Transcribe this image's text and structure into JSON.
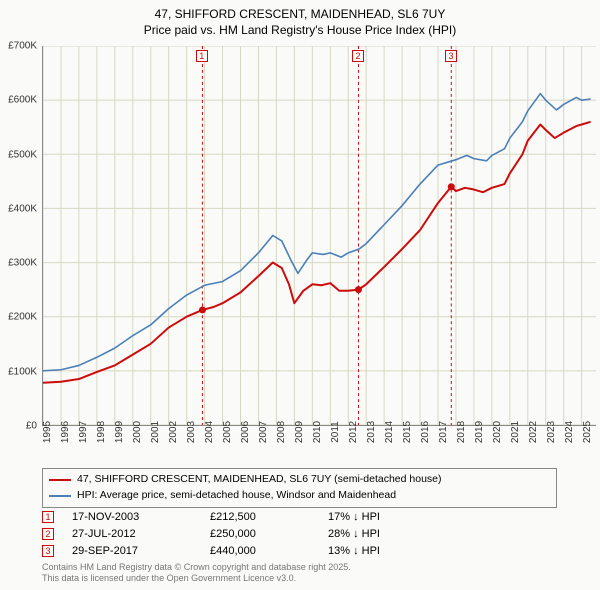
{
  "title": {
    "line1": "47, SHIFFORD CRESCENT, MAIDENHEAD, SL6 7UY",
    "line2": "Price paid vs. HM Land Registry's House Price Index (HPI)"
  },
  "chart": {
    "type": "line",
    "background_color": "#fafaf8",
    "grid_color": "#d7d7c5",
    "border_color": "#888888",
    "x_domain": [
      1995,
      2025.8
    ],
    "y_domain": [
      0,
      700000
    ],
    "y_ticks": [
      {
        "v": 0,
        "label": "£0"
      },
      {
        "v": 100000,
        "label": "£100K"
      },
      {
        "v": 200000,
        "label": "£200K"
      },
      {
        "v": 300000,
        "label": "£300K"
      },
      {
        "v": 400000,
        "label": "£400K"
      },
      {
        "v": 500000,
        "label": "£500K"
      },
      {
        "v": 600000,
        "label": "£600K"
      },
      {
        "v": 700000,
        "label": "£700K"
      }
    ],
    "x_ticks": [
      1995,
      1996,
      1997,
      1998,
      1999,
      2000,
      2001,
      2002,
      2003,
      2004,
      2005,
      2006,
      2007,
      2008,
      2009,
      2010,
      2011,
      2012,
      2013,
      2014,
      2015,
      2016,
      2017,
      2018,
      2019,
      2020,
      2021,
      2022,
      2023,
      2024,
      2025
    ],
    "series": [
      {
        "name": "price_paid",
        "color": "#cc0b0b",
        "width": 2,
        "points": [
          [
            1995,
            78000
          ],
          [
            1996,
            80000
          ],
          [
            1997,
            85000
          ],
          [
            1998,
            98000
          ],
          [
            1999,
            110000
          ],
          [
            2000,
            130000
          ],
          [
            2001,
            150000
          ],
          [
            2002,
            180000
          ],
          [
            2003,
            200000
          ],
          [
            2003.88,
            212500
          ],
          [
            2004.5,
            218000
          ],
          [
            2005,
            225000
          ],
          [
            2006,
            245000
          ],
          [
            2007,
            275000
          ],
          [
            2007.8,
            300000
          ],
          [
            2008.3,
            290000
          ],
          [
            2008.7,
            260000
          ],
          [
            2009,
            225000
          ],
          [
            2009.5,
            248000
          ],
          [
            2010,
            260000
          ],
          [
            2010.5,
            258000
          ],
          [
            2011,
            262000
          ],
          [
            2011.5,
            248000
          ],
          [
            2012,
            248000
          ],
          [
            2012.57,
            250000
          ],
          [
            2013,
            260000
          ],
          [
            2014,
            292000
          ],
          [
            2015,
            325000
          ],
          [
            2016,
            360000
          ],
          [
            2017,
            410000
          ],
          [
            2017.74,
            440000
          ],
          [
            2018,
            432000
          ],
          [
            2018.5,
            438000
          ],
          [
            2019,
            435000
          ],
          [
            2019.5,
            430000
          ],
          [
            2020,
            438000
          ],
          [
            2020.7,
            445000
          ],
          [
            2021,
            465000
          ],
          [
            2021.7,
            500000
          ],
          [
            2022,
            525000
          ],
          [
            2022.7,
            555000
          ],
          [
            2023,
            545000
          ],
          [
            2023.5,
            530000
          ],
          [
            2024,
            540000
          ],
          [
            2024.7,
            552000
          ],
          [
            2025,
            555000
          ],
          [
            2025.5,
            560000
          ]
        ]
      },
      {
        "name": "hpi",
        "color": "#4a7fb8",
        "width": 1.6,
        "points": [
          [
            1995,
            100000
          ],
          [
            1996,
            102000
          ],
          [
            1997,
            110000
          ],
          [
            1998,
            125000
          ],
          [
            1999,
            142000
          ],
          [
            2000,
            165000
          ],
          [
            2001,
            185000
          ],
          [
            2002,
            215000
          ],
          [
            2003,
            240000
          ],
          [
            2004,
            258000
          ],
          [
            2005,
            265000
          ],
          [
            2006,
            285000
          ],
          [
            2007,
            318000
          ],
          [
            2007.8,
            350000
          ],
          [
            2008.3,
            340000
          ],
          [
            2008.8,
            305000
          ],
          [
            2009.2,
            280000
          ],
          [
            2009.7,
            305000
          ],
          [
            2010,
            318000
          ],
          [
            2010.6,
            315000
          ],
          [
            2011,
            318000
          ],
          [
            2011.6,
            310000
          ],
          [
            2012,
            318000
          ],
          [
            2012.6,
            325000
          ],
          [
            2013,
            335000
          ],
          [
            2014,
            370000
          ],
          [
            2015,
            405000
          ],
          [
            2016,
            445000
          ],
          [
            2017,
            480000
          ],
          [
            2018,
            490000
          ],
          [
            2018.6,
            498000
          ],
          [
            2019,
            492000
          ],
          [
            2019.7,
            488000
          ],
          [
            2020,
            498000
          ],
          [
            2020.7,
            510000
          ],
          [
            2021,
            530000
          ],
          [
            2021.7,
            560000
          ],
          [
            2022,
            580000
          ],
          [
            2022.7,
            612000
          ],
          [
            2023,
            600000
          ],
          [
            2023.6,
            582000
          ],
          [
            2024,
            592000
          ],
          [
            2024.7,
            605000
          ],
          [
            2025,
            600000
          ],
          [
            2025.5,
            602000
          ]
        ]
      }
    ],
    "sale_markers": [
      {
        "idx": "1",
        "year": 2003.88,
        "color": "#cc0b0b"
      },
      {
        "idx": "2",
        "year": 2012.57,
        "color": "#cc0b0b"
      },
      {
        "idx": "3",
        "year": 2017.74,
        "color": "#cc0b0b"
      }
    ],
    "sale_dots": [
      {
        "year": 2003.88,
        "value": 212500,
        "color": "#cc0b0b"
      },
      {
        "year": 2012.57,
        "value": 250000,
        "color": "#cc0b0b"
      },
      {
        "year": 2017.74,
        "value": 440000,
        "color": "#cc0b0b"
      }
    ]
  },
  "legend": {
    "items": [
      {
        "color": "#cc0b0b",
        "label": "47, SHIFFORD CRESCENT, MAIDENHEAD, SL6 7UY (semi-detached house)"
      },
      {
        "color": "#4a7fb8",
        "label": "HPI: Average price, semi-detached house, Windsor and Maidenhead"
      }
    ]
  },
  "sales": [
    {
      "idx": "1",
      "date": "17-NOV-2003",
      "price": "£212,500",
      "diff": "17% ↓ HPI",
      "color": "#cc0b0b"
    },
    {
      "idx": "2",
      "date": "27-JUL-2012",
      "price": "£250,000",
      "diff": "28% ↓ HPI",
      "color": "#cc0b0b"
    },
    {
      "idx": "3",
      "date": "29-SEP-2017",
      "price": "£440,000",
      "diff": "13% ↓ HPI",
      "color": "#cc0b0b"
    }
  ],
  "footer": {
    "line1": "Contains HM Land Registry data © Crown copyright and database right 2025.",
    "line2": "This data is licensed under the Open Government Licence v3.0."
  },
  "fontsize": {
    "title": 12,
    "axis": 10,
    "legend": 10.5,
    "table": 11,
    "footer": 9
  }
}
